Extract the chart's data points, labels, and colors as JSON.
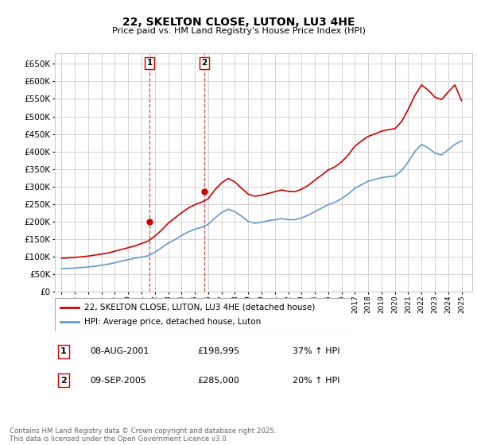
{
  "title": "22, SKELTON CLOSE, LUTON, LU3 4HE",
  "subtitle": "Price paid vs. HM Land Registry's House Price Index (HPI)",
  "ytick_values": [
    0,
    50000,
    100000,
    150000,
    200000,
    250000,
    300000,
    350000,
    400000,
    450000,
    500000,
    550000,
    600000,
    650000
  ],
  "ylim": [
    0,
    680000
  ],
  "xlim_start": 1994.5,
  "xlim_end": 2025.8,
  "legend_line1": "22, SKELTON CLOSE, LUTON, LU3 4HE (detached house)",
  "legend_line2": "HPI: Average price, detached house, Luton",
  "sale1_label": "1",
  "sale1_date": "08-AUG-2001",
  "sale1_price": "£198,995",
  "sale1_hpi": "37% ↑ HPI",
  "sale1_year": 2001.6,
  "sale1_value": 198995,
  "sale2_label": "2",
  "sale2_date": "09-SEP-2005",
  "sale2_price": "£285,000",
  "sale2_hpi": "20% ↑ HPI",
  "sale2_year": 2005.7,
  "sale2_value": 285000,
  "red_color": "#cc0000",
  "blue_color": "#6699cc",
  "background_color": "#ffffff",
  "grid_color": "#cccccc",
  "footnote": "Contains HM Land Registry data © Crown copyright and database right 2025.\nThis data is licensed under the Open Government Licence v3.0.",
  "hpi_years": [
    1995,
    1995.5,
    1996,
    1996.5,
    1997,
    1997.5,
    1998,
    1998.5,
    1999,
    1999.5,
    2000,
    2000.5,
    2001,
    2001.5,
    2002,
    2002.5,
    2003,
    2003.5,
    2004,
    2004.5,
    2005,
    2005.5,
    2006,
    2006.5,
    2007,
    2007.5,
    2008,
    2008.5,
    2009,
    2009.5,
    2010,
    2010.5,
    2011,
    2011.5,
    2012,
    2012.5,
    2013,
    2013.5,
    2014,
    2014.5,
    2015,
    2015.5,
    2016,
    2016.5,
    2017,
    2017.5,
    2018,
    2018.5,
    2019,
    2019.5,
    2020,
    2020.5,
    2021,
    2021.5,
    2022,
    2022.5,
    2023,
    2023.5,
    2024,
    2024.5,
    2025
  ],
  "hpi_values": [
    65000,
    66000,
    67000,
    68500,
    70000,
    72000,
    75000,
    78000,
    82000,
    87000,
    91000,
    95000,
    98000,
    102000,
    112000,
    125000,
    138000,
    148000,
    160000,
    170000,
    178000,
    183000,
    192000,
    210000,
    225000,
    235000,
    228000,
    215000,
    200000,
    195000,
    198000,
    202000,
    205000,
    208000,
    205000,
    205000,
    210000,
    218000,
    228000,
    238000,
    248000,
    255000,
    265000,
    278000,
    295000,
    305000,
    315000,
    320000,
    325000,
    328000,
    330000,
    345000,
    370000,
    400000,
    420000,
    410000,
    395000,
    390000,
    405000,
    420000,
    430000
  ],
  "red_years": [
    1995,
    1995.5,
    1996,
    1996.5,
    1997,
    1997.5,
    1998,
    1998.5,
    1999,
    1999.5,
    2000,
    2000.5,
    2001,
    2001.5,
    2002,
    2002.5,
    2003,
    2003.5,
    2004,
    2004.5,
    2005,
    2005.5,
    2006,
    2006.5,
    2007,
    2007.5,
    2008,
    2008.5,
    2009,
    2009.5,
    2010,
    2010.5,
    2011,
    2011.5,
    2012,
    2012.5,
    2013,
    2013.5,
    2014,
    2014.5,
    2015,
    2015.5,
    2016,
    2016.5,
    2017,
    2017.5,
    2018,
    2018.5,
    2019,
    2019.5,
    2020,
    2020.5,
    2021,
    2021.5,
    2022,
    2022.5,
    2023,
    2023.5,
    2024,
    2024.5,
    2025
  ],
  "red_values": [
    95000,
    96000,
    97500,
    99000,
    101000,
    104000,
    107000,
    110000,
    115000,
    120000,
    125000,
    130000,
    137000,
    144000,
    158000,
    175000,
    195000,
    210000,
    225000,
    238000,
    248000,
    255000,
    265000,
    290000,
    310000,
    323000,
    313000,
    295000,
    278000,
    272000,
    275000,
    280000,
    285000,
    290000,
    286000,
    285000,
    292000,
    303000,
    318000,
    332000,
    347000,
    356000,
    370000,
    390000,
    415000,
    430000,
    443000,
    450000,
    458000,
    462000,
    465000,
    485000,
    520000,
    560000,
    590000,
    575000,
    555000,
    548000,
    570000,
    590000,
    545000
  ]
}
